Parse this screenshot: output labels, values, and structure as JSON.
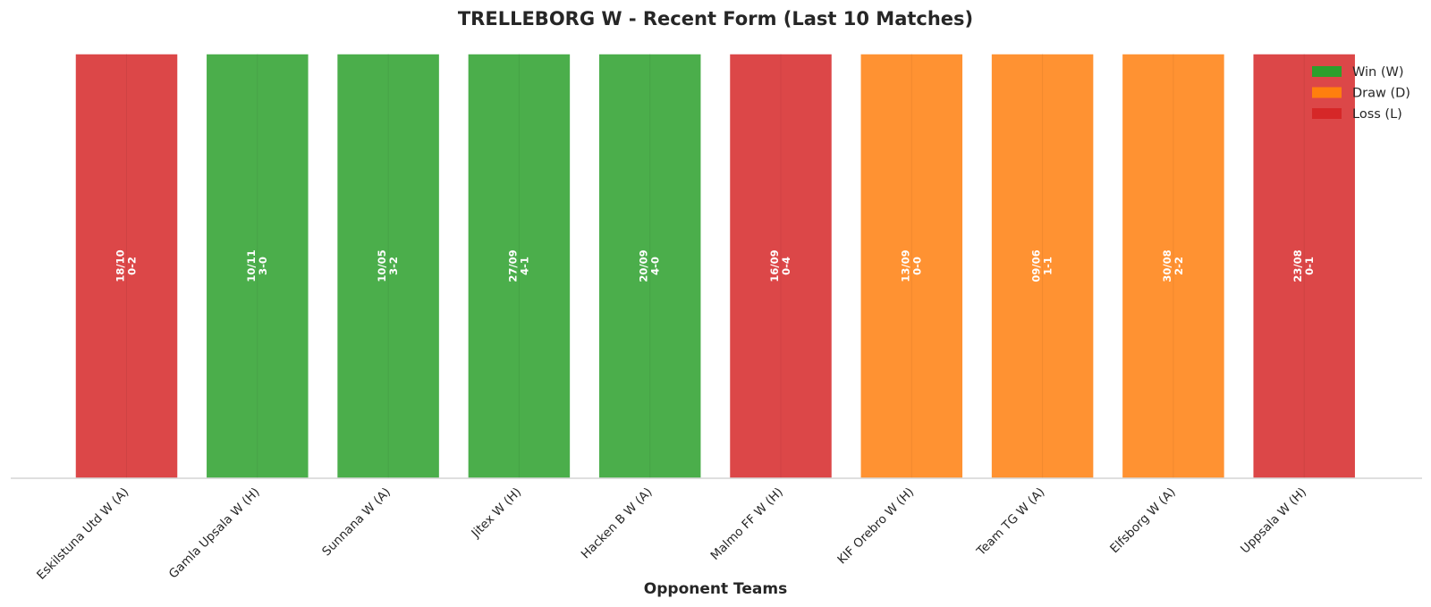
{
  "chart_data": {
    "type": "bar",
    "title": "TRELLEBORG W - Recent Form (Last 10 Matches)",
    "xlabel": "Opponent Teams",
    "ylabel": "",
    "categories": [
      "Eskilstuna Utd W (A)",
      "Gamla Upsala W (H)",
      "Sunnana W (A)",
      "Jitex W (H)",
      "Hacken B W (A)",
      "Malmo FF W (H)",
      "KIF Orebro W (H)",
      "Team TG W (A)",
      "Elfsborg W (A)",
      "Uppsala W (H)"
    ],
    "values": [
      1,
      1,
      1,
      1,
      1,
      1,
      1,
      1,
      1,
      1
    ],
    "results": [
      "L",
      "W",
      "W",
      "W",
      "W",
      "L",
      "D",
      "D",
      "D",
      "L"
    ],
    "dates": [
      "18/10",
      "10/11",
      "10/05",
      "27/09",
      "20/09",
      "16/09",
      "13/09",
      "09/06",
      "30/08",
      "23/08"
    ],
    "scores": [
      "0-2",
      "3-0",
      "3-2",
      "4-1",
      "4-0",
      "0-4",
      "0-0",
      "1-1",
      "2-2",
      "0-1"
    ],
    "ylim": [
      0,
      1
    ],
    "grid": false,
    "legend_position": "top-right",
    "legend": [
      {
        "key": "W",
        "label": "Win (W)",
        "color": "#2ca02c"
      },
      {
        "key": "D",
        "label": "Draw (D)",
        "color": "#ff7f0e"
      },
      {
        "key": "L",
        "label": "Loss (L)",
        "color": "#d62728"
      }
    ]
  }
}
